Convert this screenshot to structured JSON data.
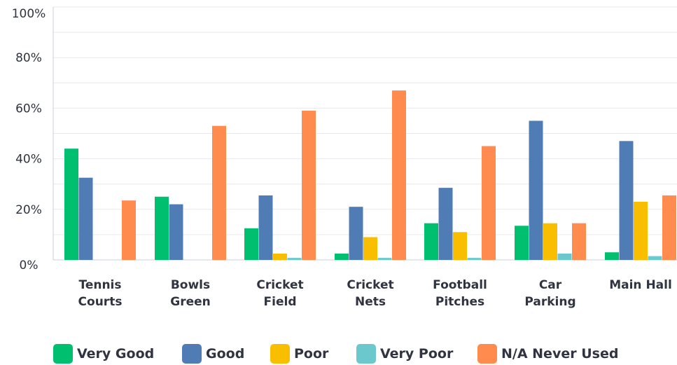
{
  "chart_data": {
    "type": "bar",
    "categories": [
      [
        "Tennis",
        "Courts"
      ],
      [
        "Bowls",
        "Green"
      ],
      [
        "Cricket",
        "Field"
      ],
      [
        "Cricket",
        "Nets"
      ],
      [
        "Football",
        "Pitches"
      ],
      [
        "Car",
        "Parking"
      ],
      [
        "Main Hall"
      ]
    ],
    "series": [
      {
        "name": "Very Good",
        "color": "#00bf6f",
        "values": [
          44,
          25,
          12.5,
          2.5,
          14.5,
          13.5,
          3
        ]
      },
      {
        "name": "Good",
        "color": "#507cb6",
        "values": [
          32.5,
          22,
          25.5,
          21,
          28.5,
          55,
          47
        ]
      },
      {
        "name": "Poor",
        "color": "#f9be00",
        "values": [
          0,
          0,
          2.5,
          9,
          11,
          14.5,
          23
        ]
      },
      {
        "name": "Very Poor",
        "color": "#6bc8cd",
        "values": [
          0,
          0,
          0.8,
          0.8,
          0.8,
          2.5,
          1.5
        ]
      },
      {
        "name": "N/A Never Used",
        "color": "#ff8b4f",
        "values": [
          23.5,
          53,
          59,
          67,
          45,
          14.5,
          25.5
        ]
      }
    ],
    "y_ticks": [
      "0%",
      "20%",
      "40%",
      "60%",
      "80%",
      "100%"
    ],
    "ylim": [
      0,
      100
    ],
    "grid": true,
    "legend": "bottom-center"
  }
}
